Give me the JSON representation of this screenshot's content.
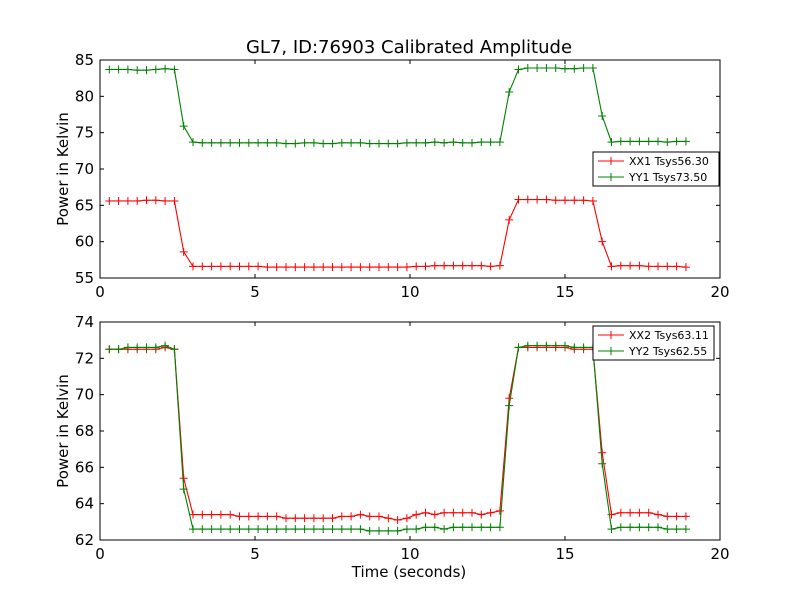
{
  "chart_data": {
    "title": "GL7, ID:76903 Calibrated Amplitude",
    "xlabel": "Time (seconds)",
    "panels": [
      {
        "type": "line",
        "ylabel": "Power in Kelvin",
        "xlim": [
          0,
          20
        ],
        "ylim": [
          55,
          85
        ],
        "xticks": [
          0,
          5,
          10,
          15,
          20
        ],
        "yticks": [
          55,
          60,
          65,
          70,
          75,
          80,
          85
        ],
        "grid": false,
        "legend_position": "center-right",
        "x": [
          0.3,
          0.6,
          0.9,
          1.2,
          1.5,
          1.8,
          2.1,
          2.4,
          2.7,
          3.0,
          3.3,
          3.6,
          3.9,
          4.2,
          4.5,
          4.8,
          5.1,
          5.4,
          5.7,
          6.0,
          6.3,
          6.6,
          6.9,
          7.2,
          7.5,
          7.8,
          8.1,
          8.4,
          8.7,
          9.0,
          9.3,
          9.6,
          9.9,
          10.2,
          10.5,
          10.8,
          11.1,
          11.4,
          11.7,
          12.0,
          12.3,
          12.6,
          12.9,
          13.2,
          13.5,
          13.8,
          14.1,
          14.4,
          14.7,
          15.0,
          15.3,
          15.6,
          15.9,
          16.2,
          16.5,
          16.8,
          17.1,
          17.4,
          17.7,
          18.0,
          18.3,
          18.6,
          18.9
        ],
        "series": [
          {
            "name": "XX1 Tsys56.30",
            "color": "#ff0000",
            "values": [
              65.6,
              65.6,
              65.6,
              65.6,
              65.7,
              65.7,
              65.6,
              65.6,
              58.6,
              56.6,
              56.6,
              56.6,
              56.6,
              56.6,
              56.6,
              56.6,
              56.6,
              56.5,
              56.5,
              56.5,
              56.5,
              56.5,
              56.5,
              56.5,
              56.5,
              56.5,
              56.5,
              56.5,
              56.5,
              56.5,
              56.5,
              56.5,
              56.5,
              56.6,
              56.6,
              56.7,
              56.7,
              56.7,
              56.7,
              56.7,
              56.7,
              56.6,
              56.7,
              63.0,
              65.8,
              65.8,
              65.8,
              65.8,
              65.7,
              65.7,
              65.7,
              65.7,
              65.6,
              60.0,
              56.6,
              56.7,
              56.7,
              56.7,
              56.6,
              56.6,
              56.6,
              56.6,
              56.5
            ]
          },
          {
            "name": "YY1 Tsys73.50",
            "color": "#008000",
            "values": [
              83.7,
              83.7,
              83.7,
              83.6,
              83.6,
              83.7,
              83.8,
              83.7,
              75.9,
              73.7,
              73.6,
              73.6,
              73.6,
              73.6,
              73.6,
              73.6,
              73.6,
              73.6,
              73.6,
              73.5,
              73.5,
              73.6,
              73.6,
              73.5,
              73.5,
              73.6,
              73.6,
              73.6,
              73.5,
              73.5,
              73.5,
              73.5,
              73.6,
              73.6,
              73.6,
              73.7,
              73.6,
              73.7,
              73.6,
              73.6,
              73.7,
              73.7,
              73.7,
              80.6,
              83.7,
              83.9,
              83.9,
              83.9,
              83.9,
              83.8,
              83.8,
              83.9,
              83.9,
              77.3,
              73.7,
              73.8,
              73.8,
              73.8,
              73.8,
              73.8,
              73.7,
              73.8,
              73.8
            ]
          }
        ]
      },
      {
        "type": "line",
        "ylabel": "Power in Kelvin",
        "xlim": [
          0,
          20
        ],
        "ylim": [
          62,
          74
        ],
        "xticks": [
          0,
          5,
          10,
          15,
          20
        ],
        "yticks": [
          62,
          64,
          66,
          68,
          70,
          72,
          74
        ],
        "grid": false,
        "legend_position": "top-right",
        "x": [
          0.3,
          0.6,
          0.9,
          1.2,
          1.5,
          1.8,
          2.1,
          2.4,
          2.7,
          3.0,
          3.3,
          3.6,
          3.9,
          4.2,
          4.5,
          4.8,
          5.1,
          5.4,
          5.7,
          6.0,
          6.3,
          6.6,
          6.9,
          7.2,
          7.5,
          7.8,
          8.1,
          8.4,
          8.7,
          9.0,
          9.3,
          9.6,
          9.9,
          10.2,
          10.5,
          10.8,
          11.1,
          11.4,
          11.7,
          12.0,
          12.3,
          12.6,
          12.9,
          13.2,
          13.5,
          13.8,
          14.1,
          14.4,
          14.7,
          15.0,
          15.3,
          15.6,
          15.9,
          16.2,
          16.5,
          16.8,
          17.1,
          17.4,
          17.7,
          18.0,
          18.3,
          18.6,
          18.9
        ],
        "series": [
          {
            "name": "XX2 Tsys63.11",
            "color": "#ff0000",
            "values": [
              72.5,
              72.5,
              72.5,
              72.5,
              72.5,
              72.5,
              72.6,
              72.5,
              65.4,
              63.4,
              63.4,
              63.4,
              63.4,
              63.4,
              63.3,
              63.3,
              63.3,
              63.3,
              63.3,
              63.2,
              63.2,
              63.2,
              63.2,
              63.2,
              63.2,
              63.3,
              63.3,
              63.4,
              63.3,
              63.3,
              63.2,
              63.1,
              63.2,
              63.4,
              63.5,
              63.4,
              63.5,
              63.5,
              63.5,
              63.5,
              63.4,
              63.5,
              63.6,
              69.8,
              72.6,
              72.6,
              72.6,
              72.6,
              72.6,
              72.6,
              72.5,
              72.5,
              72.5,
              66.8,
              63.4,
              63.5,
              63.5,
              63.5,
              63.5,
              63.4,
              63.3,
              63.3,
              63.3
            ]
          },
          {
            "name": "YY2 Tsys62.55",
            "color": "#008000",
            "values": [
              72.5,
              72.5,
              72.6,
              72.6,
              72.6,
              72.6,
              72.7,
              72.5,
              64.8,
              62.6,
              62.6,
              62.6,
              62.6,
              62.6,
              62.6,
              62.6,
              62.6,
              62.6,
              62.6,
              62.6,
              62.6,
              62.6,
              62.6,
              62.6,
              62.6,
              62.6,
              62.6,
              62.6,
              62.5,
              62.5,
              62.5,
              62.5,
              62.6,
              62.6,
              62.7,
              62.7,
              62.6,
              62.7,
              62.7,
              62.7,
              62.7,
              62.7,
              62.7,
              69.4,
              72.6,
              72.7,
              72.7,
              72.7,
              72.7,
              72.7,
              72.6,
              72.6,
              72.6,
              66.2,
              62.6,
              62.7,
              62.7,
              62.7,
              62.7,
              62.7,
              62.6,
              62.6,
              62.6
            ]
          }
        ]
      }
    ]
  }
}
